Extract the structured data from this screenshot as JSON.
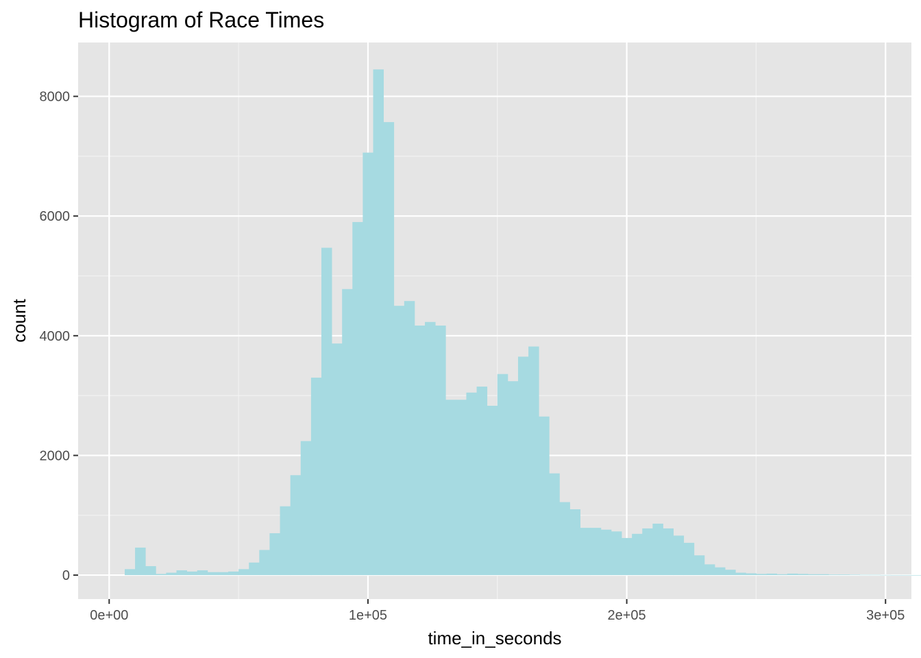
{
  "chart_data": {
    "type": "bar",
    "title": "Histogram of Race Times",
    "xlabel": "time_in_seconds",
    "ylabel": "count",
    "xlim": [
      -12000,
      310000
    ],
    "ylim": [
      -400,
      8900
    ],
    "x_ticks": [
      0,
      100000,
      200000,
      300000
    ],
    "x_tick_labels": [
      "0e+00",
      "1e+05",
      "2e+05",
      "3e+05"
    ],
    "y_ticks": [
      0,
      2000,
      4000,
      6000,
      8000
    ],
    "y_tick_labels": [
      "0",
      "2000",
      "4000",
      "6000",
      "8000"
    ],
    "grid": true,
    "legend": "none",
    "bin_start": 6000,
    "bin_width": 4000,
    "values": [
      100,
      460,
      150,
      20,
      40,
      80,
      60,
      80,
      50,
      50,
      60,
      100,
      210,
      420,
      700,
      1150,
      1670,
      2240,
      3300,
      5470,
      3870,
      4780,
      5900,
      7060,
      8450,
      7570,
      4500,
      4580,
      4170,
      4230,
      4170,
      2930,
      2930,
      3050,
      3150,
      2830,
      3360,
      3240,
      3650,
      3820,
      2650,
      1700,
      1220,
      1100,
      790,
      790,
      760,
      730,
      620,
      690,
      780,
      860,
      780,
      660,
      540,
      330,
      180,
      130,
      90,
      40,
      30,
      20,
      25,
      15,
      25,
      20,
      15,
      15,
      10,
      10,
      8,
      5,
      5,
      3,
      2,
      2,
      1
    ],
    "colors": {
      "bar": "#a6dae1",
      "panel": "#e5e5e5",
      "grid_major": "#ffffff",
      "grid_minor": "#f2f2f2"
    }
  }
}
